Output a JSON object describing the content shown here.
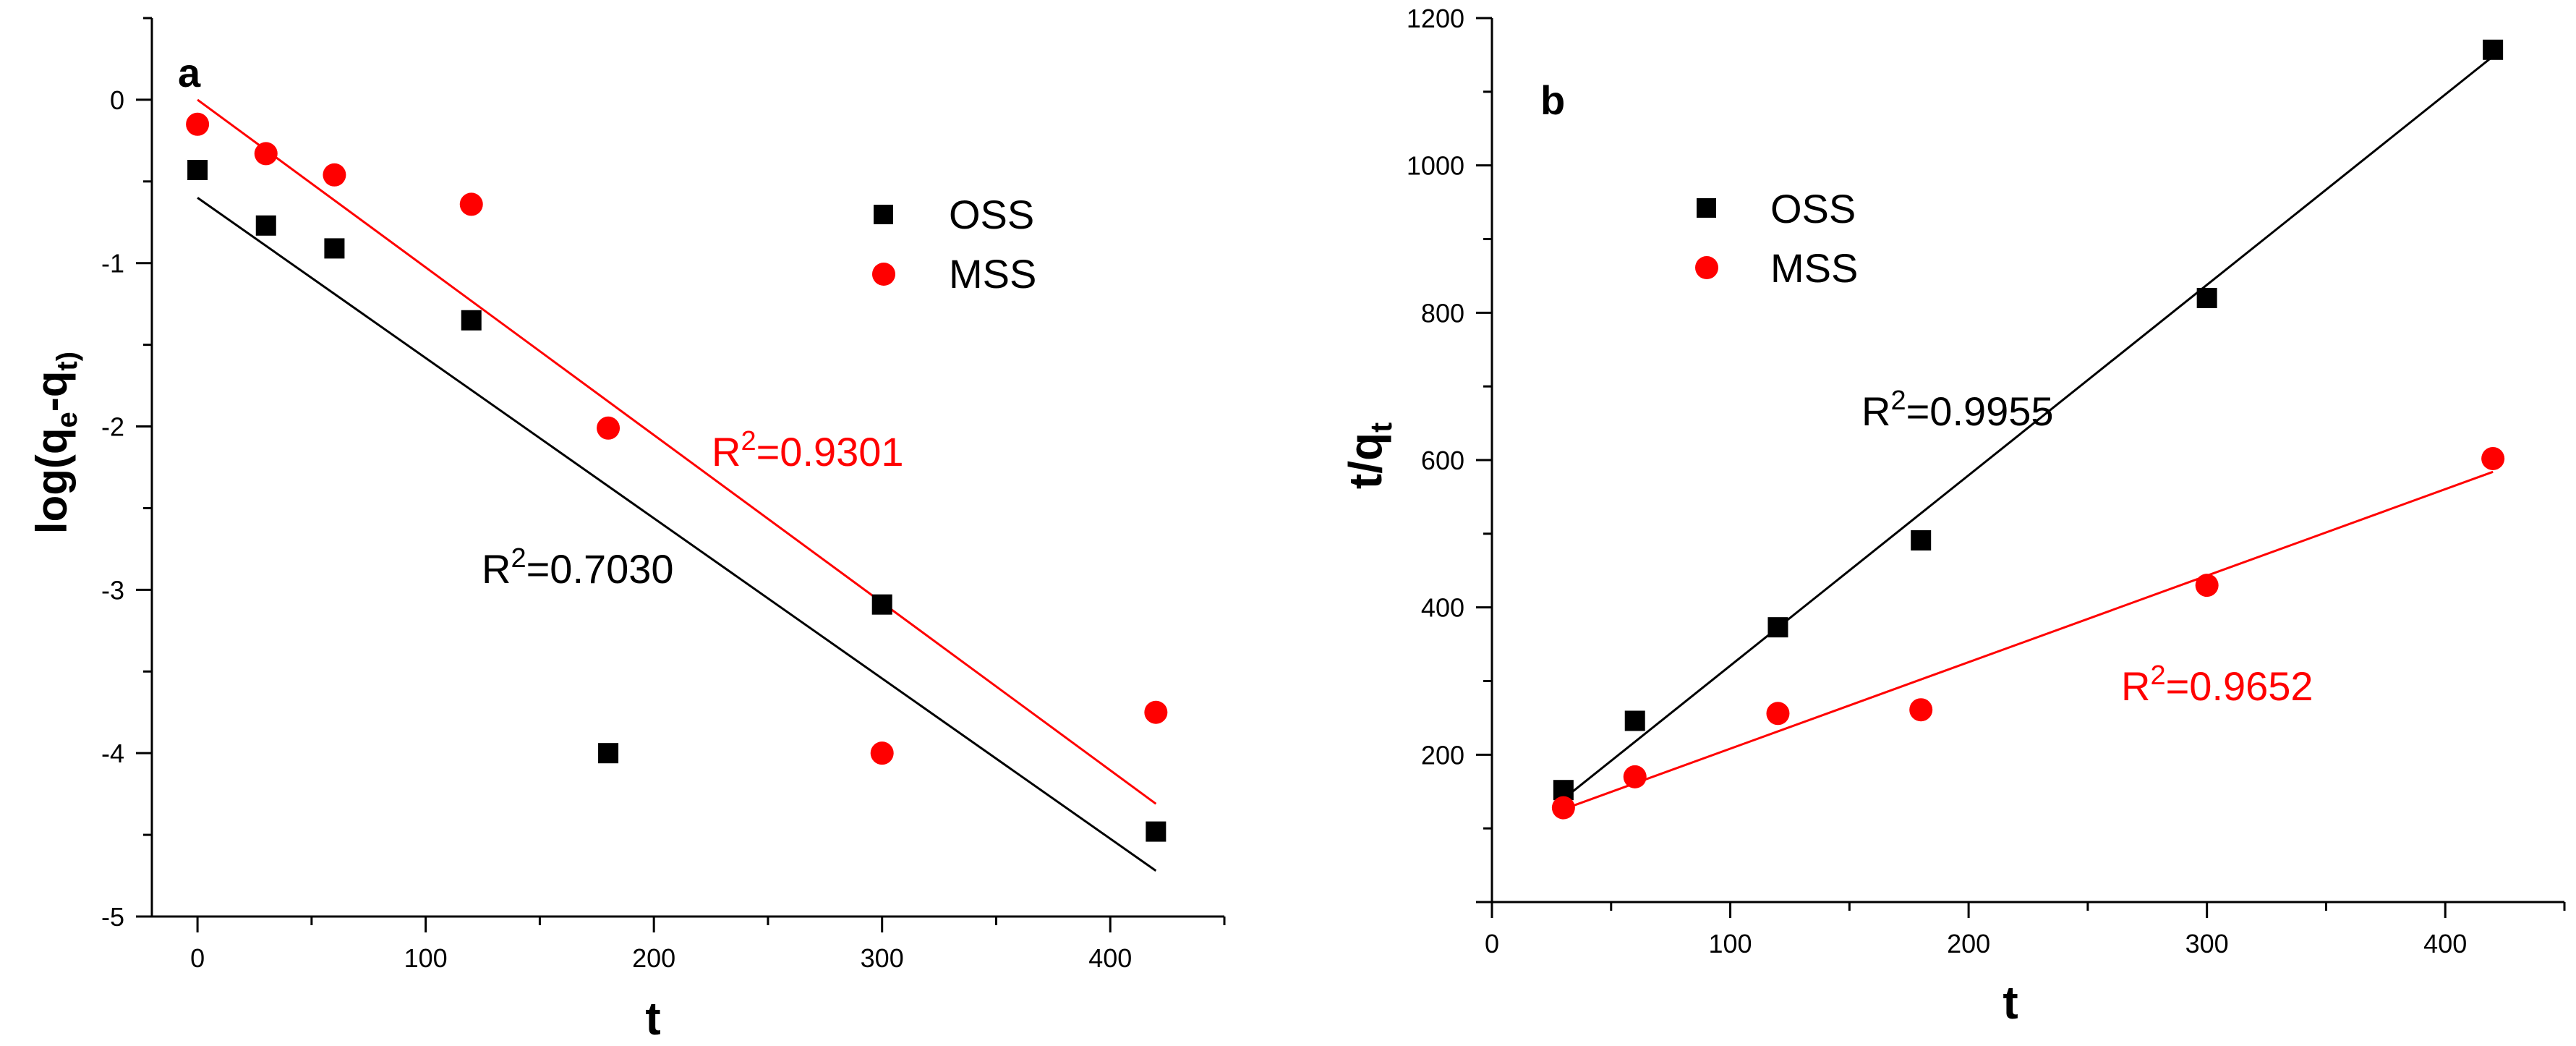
{
  "colors": {
    "oss": "#000000",
    "mss": "#ff0000",
    "axis": "#000000",
    "background": "#ffffff"
  },
  "chart_data": [
    {
      "type": "scatter",
      "panel_label": "a",
      "xlabel": "t",
      "ylabel_base": "log(q",
      "ylabel_sub1": "e",
      "ylabel_mid": "-q",
      "ylabel_sub2": "t)",
      "xlim": [
        -20,
        450
      ],
      "ylim": [
        -5,
        0.5
      ],
      "x_ticks": [
        0,
        100,
        200,
        300,
        400
      ],
      "y_ticks": [
        0,
        -1,
        -2,
        -3,
        -4,
        -5
      ],
      "x_tick_labels": [
        "0",
        "100",
        "200",
        "300",
        "400"
      ],
      "y_tick_labels": [
        "0",
        "-1",
        "-2",
        "-3",
        "-4",
        "-5"
      ],
      "grid": false,
      "legend": "top-right",
      "series": [
        {
          "name": "OSS",
          "marker": "square",
          "x": [
            0,
            30,
            60,
            120,
            180,
            300,
            420
          ],
          "y": [
            -0.43,
            -0.77,
            -0.91,
            -1.35,
            -4.0,
            -3.09,
            -4.48
          ],
          "fit": {
            "x": [
              0,
              420
            ],
            "y": [
              -0.6,
              -4.72
            ]
          },
          "r2_sup": "2",
          "r2_value": "=0.7030"
        },
        {
          "name": "MSS",
          "marker": "circle",
          "x": [
            0,
            30,
            60,
            120,
            180,
            300,
            420
          ],
          "y": [
            -0.15,
            -0.33,
            -0.46,
            -0.64,
            -2.01,
            -4.0,
            -3.75
          ],
          "fit": {
            "x": [
              0,
              420
            ],
            "y": [
              0.0,
              -4.31
            ]
          },
          "r2_sup": "2",
          "r2_value": "=0.9301"
        }
      ]
    },
    {
      "type": "scatter",
      "panel_label": "b",
      "xlabel": "t",
      "ylabel_base": "t/q",
      "ylabel_sub": "t",
      "xlim": [
        0,
        450
      ],
      "ylim": [
        0,
        1200
      ],
      "x_ticks": [
        0,
        100,
        200,
        300,
        400
      ],
      "y_ticks": [
        200,
        400,
        600,
        800,
        1000,
        1200
      ],
      "x_tick_labels": [
        "0",
        "100",
        "200",
        "300",
        "400"
      ],
      "y_tick_labels": [
        "200",
        "400",
        "600",
        "800",
        "1000",
        "1200"
      ],
      "grid": false,
      "legend": "top-left",
      "series": [
        {
          "name": "OSS",
          "marker": "square",
          "x": [
            30,
            60,
            120,
            180,
            300,
            420
          ],
          "y": [
            152,
            246,
            373,
            491,
            820,
            1157
          ],
          "fit": {
            "x": [
              30,
              420
            ],
            "y": [
              140,
              1148
            ]
          },
          "r2_sup": "2",
          "r2_value": "=0.9955"
        },
        {
          "name": "MSS",
          "marker": "circle",
          "x": [
            30,
            60,
            120,
            180,
            300,
            420
          ],
          "y": [
            128,
            170,
            256,
            261,
            430,
            602
          ],
          "fit": {
            "x": [
              30,
              420
            ],
            "y": [
              126,
              584
            ]
          },
          "r2_sup": "2",
          "r2_value": "=0.9652"
        }
      ]
    }
  ]
}
